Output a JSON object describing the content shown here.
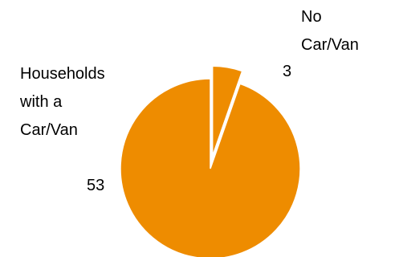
{
  "chart_data": {
    "type": "pie",
    "title": "",
    "slices": [
      {
        "label_lines": [
          "No",
          "Car/Van"
        ],
        "value": 3,
        "value_label": "3",
        "exploded": true,
        "color": "#ee8c00"
      },
      {
        "label_lines": [
          "Households",
          "with a",
          "Car/Van"
        ],
        "value": 53,
        "value_label": "53",
        "exploded": false,
        "color": "#ee8c00"
      }
    ],
    "background": "#ffffff",
    "legend": "none"
  }
}
